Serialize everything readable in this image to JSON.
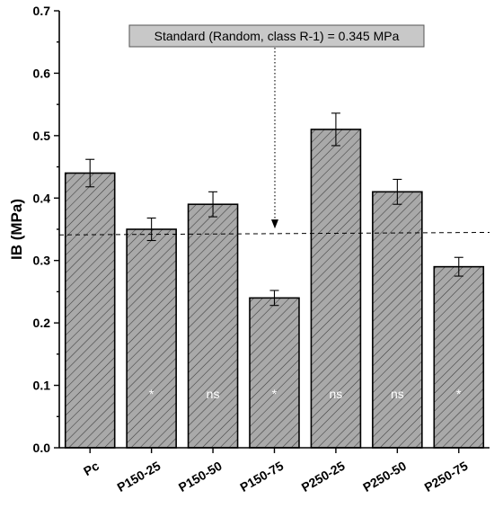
{
  "chart_data": {
    "type": "bar",
    "title": "",
    "xlabel": "",
    "ylabel": "IB (MPa)",
    "ylim": [
      0,
      0.7
    ],
    "yticks": [
      "0.0",
      "0.1",
      "0.2",
      "0.3",
      "0.4",
      "0.5",
      "0.6",
      "0.7"
    ],
    "categories": [
      "Pc",
      "P150-25",
      "P150-50",
      "P150-75",
      "P250-25",
      "P250-50",
      "P250-75"
    ],
    "values": [
      0.44,
      0.35,
      0.39,
      0.24,
      0.51,
      0.41,
      0.29
    ],
    "errors": [
      0.022,
      0.018,
      0.02,
      0.012,
      0.026,
      0.02,
      0.015
    ],
    "bar_labels": [
      "",
      "*",
      "ns",
      "*",
      "ns",
      "ns",
      "*"
    ],
    "reference_line": {
      "label": "Standard (Random, class R-1) = 0.345 MPa",
      "value_start": 0.341,
      "value_end": 0.345,
      "style": "dashed"
    },
    "bar_fill": "#a9a9a9",
    "hatch": "diagonal",
    "annotation_box_fill": "#c8c8c8",
    "grid": false,
    "legend": "none"
  }
}
